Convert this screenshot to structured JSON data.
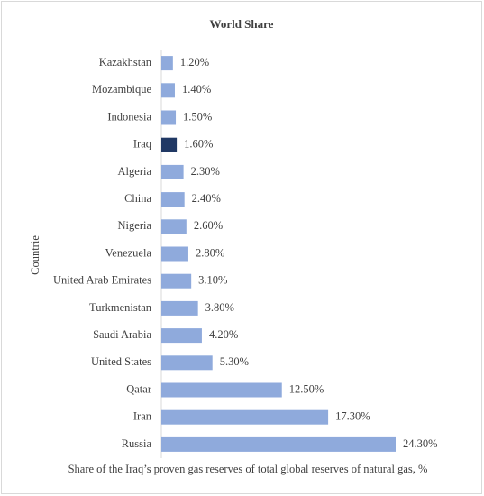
{
  "chart_data": {
    "type": "bar",
    "orientation": "horizontal",
    "title": "World Share",
    "y_label": "Countrie",
    "x_label": "Share of the Iraq’s proven gas reserves of total global reserves of natural gas, %",
    "categories": [
      "Kazakhstan",
      "Mozambique",
      "Indonesia",
      "Iraq",
      "Algeria",
      "China",
      "Nigeria",
      "Venezuela",
      "United Arab Emirates",
      "Turkmenistan",
      "Saudi Arabia",
      "United States",
      "Qatar",
      "Iran",
      "Russia"
    ],
    "values": [
      1.2,
      1.4,
      1.5,
      1.6,
      2.3,
      2.4,
      2.6,
      2.8,
      3.1,
      3.8,
      4.2,
      5.3,
      12.5,
      17.3,
      24.3
    ],
    "value_labels": [
      "1.20%",
      "1.40%",
      "1.50%",
      "1.60%",
      "2.30%",
      "2.40%",
      "2.60%",
      "2.80%",
      "3.10%",
      "3.80%",
      "4.20%",
      "5.30%",
      "12.50%",
      "17.30%",
      "24.30%"
    ],
    "colors": [
      "#8faadc",
      "#8faadc",
      "#8faadc",
      "#203864",
      "#8faadc",
      "#8faadc",
      "#8faadc",
      "#8faadc",
      "#8faadc",
      "#8faadc",
      "#8faadc",
      "#8faadc",
      "#8faadc",
      "#8faadc",
      "#8faadc"
    ]
  }
}
